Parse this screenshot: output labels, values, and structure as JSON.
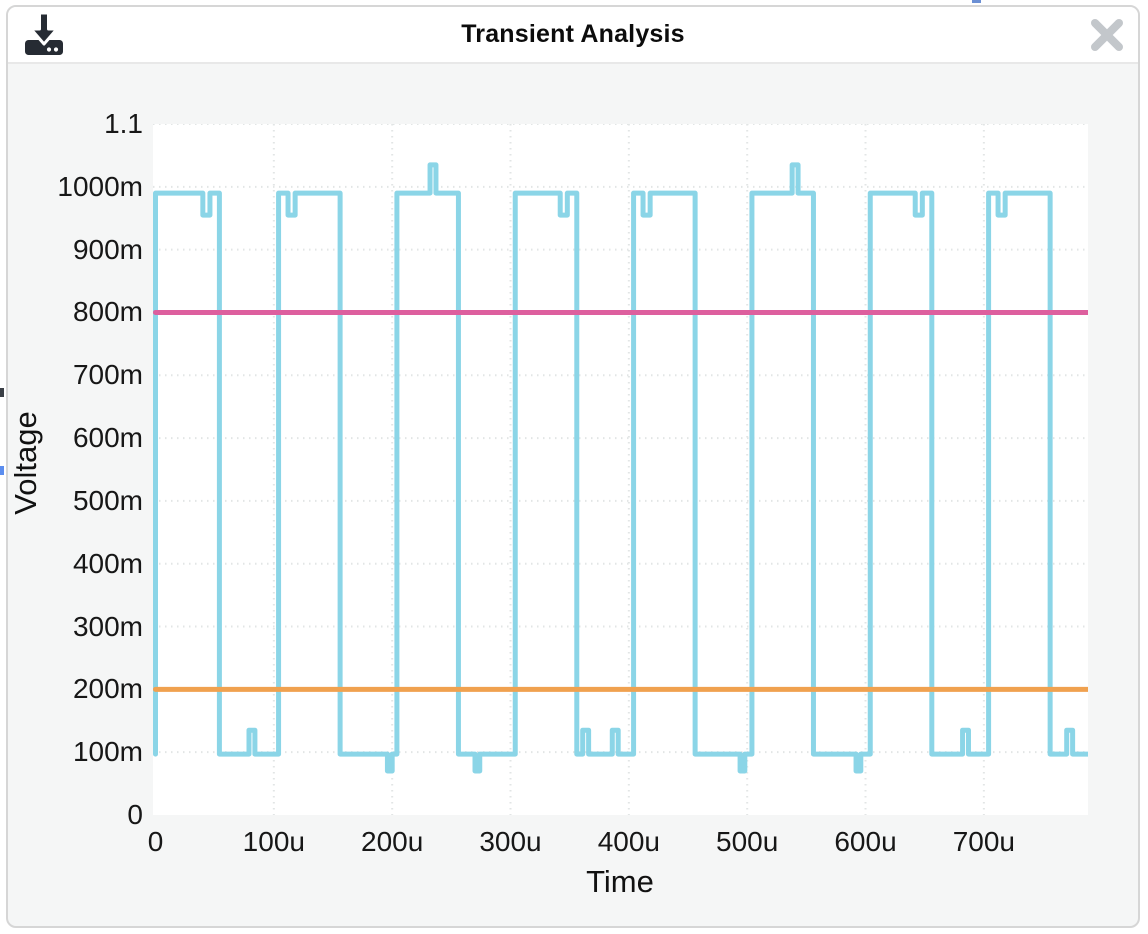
{
  "modal": {
    "title": "Transient Analysis",
    "border_color": "#d6d6d6",
    "header_bg": "#ffffff",
    "body_bg": "#f5f6f6"
  },
  "toolbar": {
    "download_icon_color": "#262b33",
    "close_icon_color": "#c3c7cb"
  },
  "chart_data": {
    "type": "line",
    "title": "Transient Analysis",
    "xlabel": "Time",
    "ylabel": "Voltage",
    "x_unit": "u = microseconds",
    "y_unit": "m = millivolts",
    "xlim_us": [
      0,
      788
    ],
    "ylim_V": [
      0,
      1.1
    ],
    "plot_bg": "#ffffff",
    "panel_bg": "#f5f6f6",
    "grid": "dotted",
    "grid_color": "#e2e5e5",
    "legend": "none",
    "x_ticks": [
      {
        "t": 0,
        "label": "0"
      },
      {
        "t": 100,
        "label": "100u"
      },
      {
        "t": 200,
        "label": "200u"
      },
      {
        "t": 300,
        "label": "300u"
      },
      {
        "t": 400,
        "label": "400u"
      },
      {
        "t": 500,
        "label": "500u"
      },
      {
        "t": 600,
        "label": "600u"
      },
      {
        "t": 700,
        "label": "700u"
      }
    ],
    "y_ticks": [
      {
        "v": 0,
        "label": "0"
      },
      {
        "v": 100,
        "label": "100m"
      },
      {
        "v": 200,
        "label": "200m"
      },
      {
        "v": 300,
        "label": "300m"
      },
      {
        "v": 400,
        "label": "400m"
      },
      {
        "v": 500,
        "label": "500m"
      },
      {
        "v": 600,
        "label": "600m"
      },
      {
        "v": 700,
        "label": "700m"
      },
      {
        "v": 800,
        "label": "800m"
      },
      {
        "v": 900,
        "label": "900m"
      },
      {
        "v": 1000,
        "label": "1000m"
      },
      {
        "v": 1100,
        "label": "1.1"
      }
    ],
    "series": [
      {
        "name": "square-wave",
        "color": "#8bd5e7",
        "stroke_width": 5,
        "high_mV": 990,
        "low_mV": 97,
        "period_us": 100,
        "points_t_us_v_mV": [
          [
            0,
            97
          ],
          [
            0,
            990
          ],
          [
            40,
            990
          ],
          [
            40,
            955
          ],
          [
            46,
            955
          ],
          [
            46,
            990
          ],
          [
            54,
            990
          ],
          [
            54,
            97
          ],
          [
            79,
            97
          ],
          [
            79,
            135
          ],
          [
            84,
            135
          ],
          [
            84,
            97
          ],
          [
            104,
            97
          ],
          [
            104,
            990
          ],
          [
            112,
            990
          ],
          [
            112,
            955
          ],
          [
            118,
            955
          ],
          [
            118,
            990
          ],
          [
            156,
            990
          ],
          [
            156,
            97
          ],
          [
            196,
            97
          ],
          [
            196,
            70
          ],
          [
            200,
            70
          ],
          [
            200,
            97
          ],
          [
            204,
            97
          ],
          [
            204,
            990
          ],
          [
            232,
            990
          ],
          [
            232,
            1035
          ],
          [
            237,
            1035
          ],
          [
            237,
            990
          ],
          [
            256,
            990
          ],
          [
            256,
            97
          ],
          [
            270,
            97
          ],
          [
            270,
            70
          ],
          [
            274,
            70
          ],
          [
            274,
            97
          ],
          [
            304,
            97
          ],
          [
            304,
            990
          ],
          [
            342,
            990
          ],
          [
            342,
            955
          ],
          [
            348,
            955
          ],
          [
            348,
            990
          ],
          [
            356,
            990
          ],
          [
            356,
            97
          ],
          [
            361,
            97
          ],
          [
            361,
            135
          ],
          [
            366,
            135
          ],
          [
            366,
            97
          ],
          [
            386,
            97
          ],
          [
            386,
            135
          ],
          [
            391,
            135
          ],
          [
            391,
            97
          ],
          [
            404,
            97
          ],
          [
            404,
            990
          ],
          [
            412,
            990
          ],
          [
            412,
            955
          ],
          [
            418,
            955
          ],
          [
            418,
            990
          ],
          [
            456,
            990
          ],
          [
            456,
            97
          ],
          [
            494,
            97
          ],
          [
            494,
            70
          ],
          [
            498,
            70
          ],
          [
            498,
            97
          ],
          [
            504,
            97
          ],
          [
            504,
            990
          ],
          [
            538,
            990
          ],
          [
            538,
            1035
          ],
          [
            543,
            1035
          ],
          [
            543,
            990
          ],
          [
            556,
            990
          ],
          [
            556,
            97
          ],
          [
            592,
            97
          ],
          [
            592,
            70
          ],
          [
            596,
            70
          ],
          [
            596,
            97
          ],
          [
            604,
            97
          ],
          [
            604,
            990
          ],
          [
            642,
            990
          ],
          [
            642,
            955
          ],
          [
            648,
            955
          ],
          [
            648,
            990
          ],
          [
            656,
            990
          ],
          [
            656,
            97
          ],
          [
            682,
            97
          ],
          [
            682,
            135
          ],
          [
            687,
            135
          ],
          [
            687,
            97
          ],
          [
            704,
            97
          ],
          [
            704,
            990
          ],
          [
            712,
            990
          ],
          [
            712,
            955
          ],
          [
            718,
            955
          ],
          [
            718,
            990
          ],
          [
            756,
            990
          ],
          [
            756,
            97
          ],
          [
            770,
            97
          ],
          [
            770,
            135
          ],
          [
            775,
            135
          ],
          [
            775,
            97
          ],
          [
            788,
            97
          ]
        ]
      },
      {
        "name": "upper-threshold-line",
        "color": "#dd5f9e",
        "stroke_width": 5,
        "value_mV": 800,
        "points_t_us_v_mV": [
          [
            0,
            800
          ],
          [
            788,
            800
          ]
        ]
      },
      {
        "name": "lower-threshold-line",
        "color": "#f0a14f",
        "stroke_width": 5,
        "value_mV": 200,
        "points_t_us_v_mV": [
          [
            0,
            200
          ],
          [
            788,
            200
          ]
        ]
      }
    ]
  }
}
